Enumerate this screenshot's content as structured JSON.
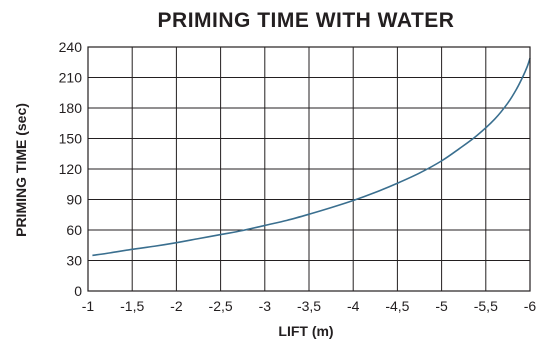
{
  "chart_data": {
    "type": "line",
    "title": "PRIMING TIME WITH WATER",
    "xlabel": "LIFT (m)",
    "ylabel": "PRIMING TIME (sec)",
    "xlim": [
      -1,
      -6
    ],
    "ylim": [
      0,
      240
    ],
    "grid": true,
    "x_ticks": [
      -1,
      -1.5,
      -2,
      -2.5,
      -3,
      -3.5,
      -4,
      -4.5,
      -5,
      -5.5,
      -6
    ],
    "x_tick_labels": [
      "-1",
      "-1,5",
      "-2",
      "-2,5",
      "-3",
      "-3,5",
      "-4",
      "-4,5",
      "-5",
      "-5,5",
      "-6"
    ],
    "y_ticks": [
      0,
      30,
      60,
      90,
      120,
      150,
      180,
      210,
      240
    ],
    "y_tick_labels": [
      "0",
      "30",
      "60",
      "90",
      "120",
      "150",
      "180",
      "210",
      "240"
    ],
    "x_gridlines": [
      -1,
      -1.5,
      -2,
      -2.5,
      -3,
      -3.5,
      -4,
      -4.5,
      -5,
      -5.5,
      -6
    ],
    "y_gridlines": [
      0,
      30,
      60,
      90,
      120,
      150,
      180,
      210,
      240
    ],
    "series": [
      {
        "color": "#3a6f8f",
        "x": [
          -1.05,
          -1.25,
          -1.5,
          -1.75,
          -2,
          -2.25,
          -2.5,
          -2.75,
          -3,
          -3.25,
          -3.5,
          -3.75,
          -4,
          -4.25,
          -4.5,
          -4.75,
          -5,
          -5.2,
          -5.4,
          -5.6,
          -5.75,
          -5.85,
          -5.92,
          -5.97,
          -6
        ],
        "y": [
          35,
          37.5,
          41,
          44,
          47.5,
          51.5,
          55.5,
          59.5,
          64.5,
          69.5,
          75.5,
          82,
          89,
          97,
          106,
          116,
          128,
          140,
          153,
          169,
          185,
          199,
          211,
          221,
          229
        ]
      }
    ]
  }
}
